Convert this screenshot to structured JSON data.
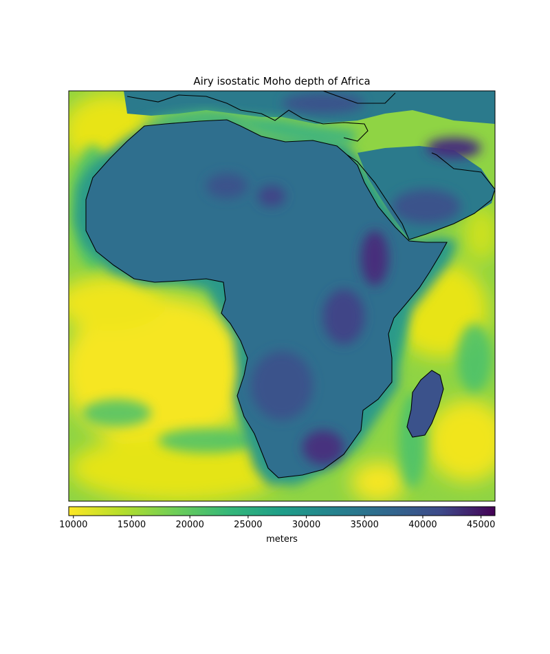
{
  "title": "Airy isostatic Moho depth of Africa",
  "colorbar": {
    "label": "meters",
    "ticks": [
      "10000",
      "15000",
      "20000",
      "25000",
      "30000",
      "35000",
      "40000",
      "45000"
    ],
    "tick_values": [
      10000,
      15000,
      20000,
      25000,
      30000,
      35000,
      40000,
      45000
    ],
    "min": 9600,
    "max": 46200,
    "colormap": "viridis (reversed: yellow = shallow, purple = deep)",
    "colors": [
      "#fde725",
      "#5ec962",
      "#21918c",
      "#3b528b",
      "#440154"
    ]
  },
  "map": {
    "projection": "Mercator",
    "coastlines": true,
    "region": "Africa",
    "colors": {
      "coastline": "#000000",
      "continent": "#2f6f8e",
      "shallow_ocean": "#dde318",
      "mid_ocean": "#5ec962",
      "shelf": "#2a9a89",
      "deep_root": "#472d7b"
    }
  }
}
